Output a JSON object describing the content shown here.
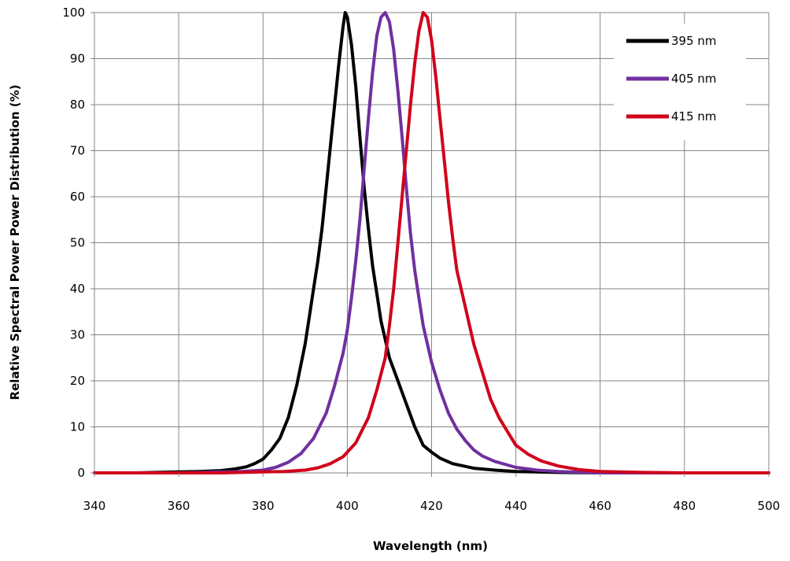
{
  "chart_data": {
    "type": "line",
    "title": "",
    "xlabel": "Wavelength (nm)",
    "ylabel": "Relative  Spectral Power Power Distribution (%)",
    "xlim": [
      340,
      500
    ],
    "ylim": [
      0,
      100
    ],
    "xticks": [
      340,
      360,
      380,
      400,
      420,
      440,
      460,
      480,
      500
    ],
    "yticks": [
      0,
      10,
      20,
      30,
      40,
      50,
      60,
      70,
      80,
      90,
      100
    ],
    "grid": true,
    "legend_position": "top-right",
    "series": [
      {
        "name": "395 nm",
        "color": "#000000",
        "x": [
          340,
          350,
          360,
          365,
          370,
          373,
          376,
          378,
          380,
          382,
          384,
          386,
          388,
          390,
          391,
          392,
          393,
          394,
          395,
          396,
          397,
          398,
          399,
          399.5,
          400,
          401,
          402,
          403,
          404,
          405,
          406,
          407,
          408,
          409,
          410,
          412,
          414,
          416,
          418,
          420,
          422,
          425,
          430,
          435,
          440,
          450,
          460,
          480,
          500
        ],
        "y": [
          0,
          0,
          0.2,
          0.3,
          0.5,
          0.8,
          1.3,
          2,
          3,
          5,
          7.5,
          12,
          19,
          28,
          34,
          40,
          46,
          53,
          62,
          71,
          80,
          89,
          97,
          100,
          99,
          93,
          84,
          73,
          62,
          53,
          45,
          39,
          33,
          29,
          25,
          20,
          15,
          10,
          6,
          4.5,
          3.2,
          2,
          1,
          0.6,
          0.3,
          0.1,
          0,
          0,
          0
        ]
      },
      {
        "name": "405 nm",
        "color": "#7030a0",
        "x": [
          340,
          360,
          370,
          375,
          380,
          383,
          386,
          389,
          392,
          395,
          397,
          399,
          400,
          401,
          402,
          403,
          404,
          405,
          406,
          407,
          408,
          409,
          410,
          411,
          412,
          413,
          414,
          415,
          416,
          417,
          418,
          420,
          422,
          424,
          426,
          428,
          430,
          432,
          435,
          440,
          445,
          450,
          460,
          480,
          500
        ],
        "y": [
          0,
          0,
          0.2,
          0.3,
          0.6,
          1.2,
          2.3,
          4.2,
          7.5,
          13,
          19,
          26,
          31,
          38,
          46,
          55,
          66,
          77,
          87,
          95,
          99,
          100,
          98,
          92,
          83,
          73,
          62,
          52,
          44,
          38,
          32,
          24,
          18,
          13,
          9.5,
          7,
          5,
          3.7,
          2.5,
          1.2,
          0.6,
          0.3,
          0,
          0,
          0
        ]
      },
      {
        "name": "415 nm",
        "color": "#d0021b",
        "x": [
          340,
          370,
          380,
          385,
          390,
          393,
          396,
          399,
          402,
          405,
          407,
          409,
          410,
          411,
          412,
          413,
          414,
          415,
          416,
          417,
          418,
          419,
          420,
          421,
          422,
          423,
          424,
          425,
          426,
          428,
          430,
          432,
          434,
          436,
          438,
          440,
          443,
          446,
          450,
          455,
          460,
          470,
          480,
          500
        ],
        "y": [
          0,
          0,
          0.2,
          0.3,
          0.6,
          1.1,
          2,
          3.5,
          6.5,
          12,
          18,
          25,
          32,
          40,
          50,
          60,
          70,
          80,
          89,
          96,
          100,
          99,
          94,
          86,
          77,
          68,
          59,
          51,
          44,
          36,
          28,
          22,
          16,
          12,
          9,
          6,
          4,
          2.6,
          1.5,
          0.7,
          0.3,
          0.1,
          0,
          0
        ]
      }
    ]
  }
}
